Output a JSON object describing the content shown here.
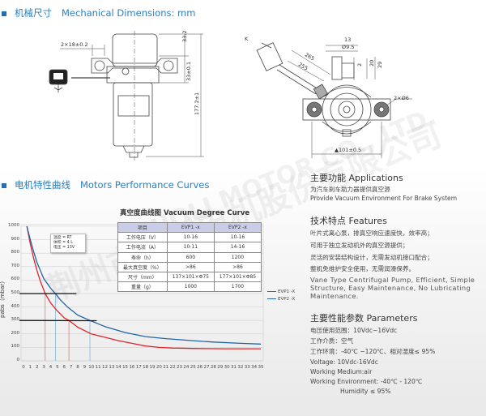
{
  "section1": {
    "title_cn": "机械尺寸",
    "title_en": "Mechanical Dimensions: mm"
  },
  "drawing_front": {
    "dim_width": "2×18±0.2",
    "dim_top": "33.2",
    "dim_mid": "33±0.1",
    "dim_total": "177.2±1"
  },
  "drawing_top": {
    "label_k": "K",
    "dim_cable1": "265",
    "dim_cable2": "255",
    "dim_13": "13",
    "dim_95": "Ø9.5",
    "dim_20": "20",
    "dim_29": "29",
    "dim_2": "2",
    "dim_holes": "2×Ø6",
    "dim_base": "▲101±0.5"
  },
  "section2": {
    "title_cn": "电机特性曲线",
    "title_en": "Motors Performance Curves"
  },
  "watermark": {
    "cn": "荆州市霍利电机股份有限公司",
    "en": "HUOLI MOTOR CO., LTD."
  },
  "chart_data": {
    "type": "line",
    "title": "真空度曲线图  Vacuum Degree Curve",
    "xlabel": "",
    "ylabel": "pabs（mbar）",
    "xlim": [
      0,
      35
    ],
    "ylim": [
      0,
      1000
    ],
    "x_ticks": [
      0,
      1,
      2,
      3,
      4,
      5,
      6,
      7,
      8,
      9,
      10,
      11,
      12,
      13,
      14,
      15,
      16,
      17,
      18,
      19,
      20,
      21,
      22,
      23,
      24,
      25,
      26,
      27,
      28,
      29,
      30,
      31,
      32,
      33,
      34,
      35
    ],
    "y_ticks": [
      0,
      100,
      200,
      300,
      400,
      500,
      600,
      700,
      800,
      900,
      1000
    ],
    "grid": "horizontal",
    "legend": "right",
    "conditions": [
      "温度 = RT",
      "体积 = 4 L",
      "电压 = 13V"
    ],
    "series": [
      {
        "name": "EVP1 -X",
        "color": "#e0262b",
        "x": [
          0.5,
          1,
          1.5,
          2,
          2.5,
          3.2,
          4,
          5,
          6,
          6.7,
          8,
          10,
          12,
          14,
          16,
          18,
          20,
          22,
          25,
          30,
          35
        ],
        "y": [
          1000,
          870,
          760,
          670,
          590,
          500,
          430,
          370,
          320,
          300,
          250,
          200,
          175,
          150,
          130,
          110,
          100,
          95,
          92,
          90,
          90
        ]
      },
      {
        "name": "EVP2 -X",
        "color": "#2165a8",
        "x": [
          0.5,
          1,
          1.5,
          2,
          3,
          4,
          4.7,
          5.5,
          6.5,
          8,
          9.8,
          12,
          15,
          18,
          21,
          25,
          28,
          32,
          35
        ],
        "y": [
          1000,
          900,
          810,
          730,
          610,
          540,
          500,
          450,
          400,
          340,
          300,
          255,
          210,
          180,
          165,
          150,
          140,
          130,
          125
        ]
      }
    ],
    "reference_lines": {
      "horizontal": [
        500,
        300
      ],
      "vertical_evp1": [
        3.2,
        6.7
      ],
      "vertical_evp2": [
        4.7,
        9.8
      ]
    }
  },
  "spec_table": {
    "headers": [
      "项目",
      "EVP1 -x",
      "EVP2 -x"
    ],
    "rows": [
      [
        "工作电压（V）",
        "10-16",
        "10-16"
      ],
      [
        "工作电流（A）",
        "10-11",
        "14-16"
      ],
      [
        "寿命（h）",
        "600",
        "1200"
      ],
      [
        "最大真空度（%）",
        ">86",
        ">86"
      ],
      [
        "尺寸（mm）",
        "137×101×Φ75",
        "177×101×Φ85"
      ],
      [
        "重量（g）",
        "1000",
        "1700"
      ]
    ]
  },
  "applications": {
    "title": "主要功能  Applications",
    "lines": [
      "为汽车刹车助力器提供真空源",
      "Provide Vacuum Environment For Brake System"
    ]
  },
  "features": {
    "title": "技术特点 Features",
    "lines_cn": [
      "叶片式离心泵，排真空响应速度快，效率高；",
      "可用于独立发动机外的真空源提供；",
      "灵活的安装结构设计，无需发动机接口配合；",
      "整机免维护安全使用，无需润滑保养。"
    ],
    "lines_en": [
      "Vane Type Centrifugal Pump, Efficient, Simple",
      "Structure, Easy Maintenance, No Lubricating",
      "Maintenance."
    ]
  },
  "parameters": {
    "title": "主要性能参数 Parameters",
    "lines": [
      "电压使用范围：10Vdc~16Vdc",
      "工作介质：空气",
      "工作环境：-40℃ ~120℃、相对湿度≤ 95%",
      "Voltage: 10Vdc-16Vdc",
      "Working Medium:air",
      "Working Environment: -40℃ - 120℃",
      "Humidity ≤ 95%"
    ]
  }
}
